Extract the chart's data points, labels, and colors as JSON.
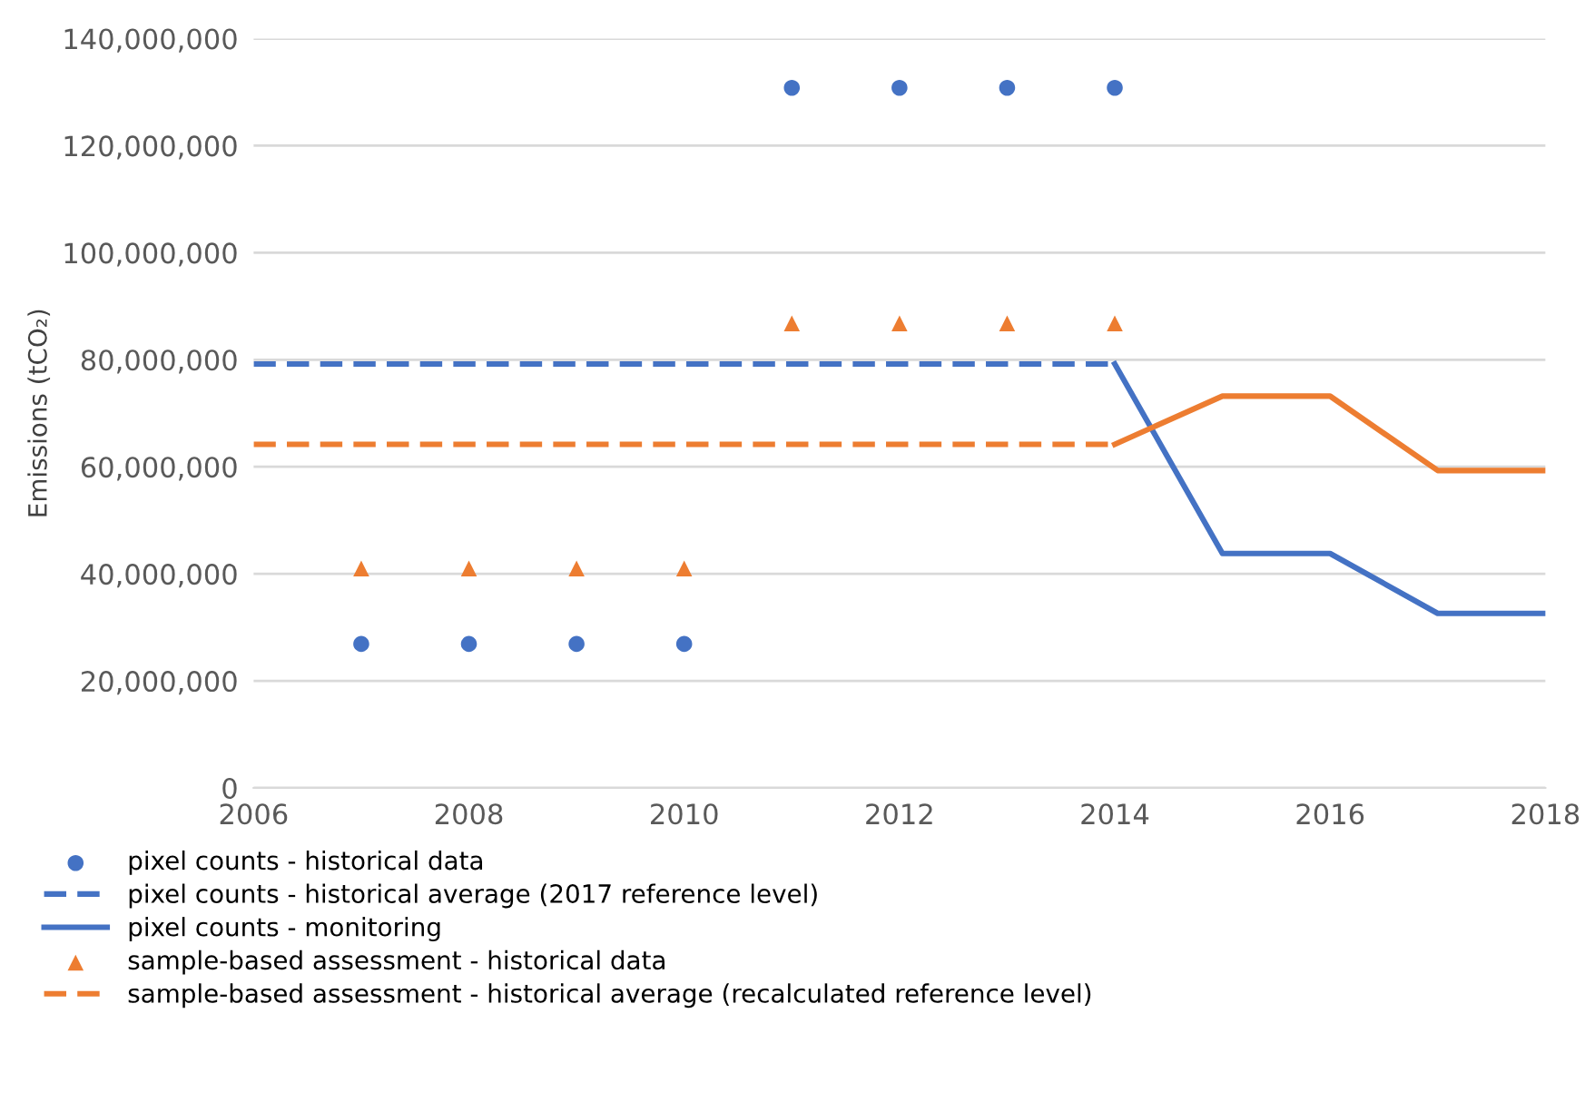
{
  "chart_data": {
    "type": "line",
    "ylabel": "Emissions (tCO₂)",
    "xlim": [
      2006,
      2018
    ],
    "xticks": [
      2006,
      2008,
      2010,
      2012,
      2014,
      2016,
      2018
    ],
    "ylim": [
      0,
      140000000
    ],
    "yticks": [
      {
        "value": 0,
        "label": "0"
      },
      {
        "value": 20000000,
        "label": "20,000,000"
      },
      {
        "value": 40000000,
        "label": "40,000,000"
      },
      {
        "value": 60000000,
        "label": "60,000,000"
      },
      {
        "value": 80000000,
        "label": "80,000,000"
      },
      {
        "value": 100000000,
        "label": "100,000,000"
      },
      {
        "value": 120000000,
        "label": "120,000,000"
      },
      {
        "value": 140000000,
        "label": "140,000,000"
      }
    ],
    "grid": "y",
    "legend": "bottom",
    "series": [
      {
        "name": "pixel counts - historical data",
        "type": "scatter",
        "marker": "circle",
        "color": "#4472c4",
        "x": [
          2007,
          2008,
          2009,
          2010,
          2011,
          2012,
          2013,
          2014
        ],
        "values": [
          26900000,
          26900000,
          26900000,
          26900000,
          130800000,
          130800000,
          130800000,
          130800000
        ]
      },
      {
        "name": "pixel counts - historical average (2017 reference level)",
        "line_style": "dashed",
        "color": "#4472c4",
        "x": [
          2006,
          2014
        ],
        "values": [
          79200000,
          79200000
        ]
      },
      {
        "name": "pixel counts - monitoring",
        "line_style": "solid",
        "color": "#4472c4",
        "x": [
          2014,
          2015,
          2016,
          2017,
          2018
        ],
        "values": [
          79200000,
          43800000,
          43800000,
          32600000,
          32600000
        ]
      },
      {
        "name": "sample-based assessment - historical data",
        "type": "scatter",
        "marker": "triangle",
        "color": "#ed7d31",
        "x": [
          2007,
          2008,
          2009,
          2010,
          2011,
          2012,
          2013,
          2014
        ],
        "values": [
          41000000,
          41000000,
          41000000,
          41000000,
          86800000,
          86800000,
          86800000,
          86800000
        ]
      },
      {
        "name": "sample-based assessment - historical average (recalculated reference level)",
        "line_style": "dashed",
        "color": "#ed7d31",
        "x": [
          2006,
          2014
        ],
        "values": [
          64200000,
          64200000
        ]
      },
      {
        "line_style": "solid",
        "color": "#ed7d31",
        "x": [
          2014,
          2015,
          2016,
          2017,
          2018
        ],
        "values": [
          64200000,
          73200000,
          73200000,
          59300000,
          59300000
        ]
      }
    ]
  }
}
